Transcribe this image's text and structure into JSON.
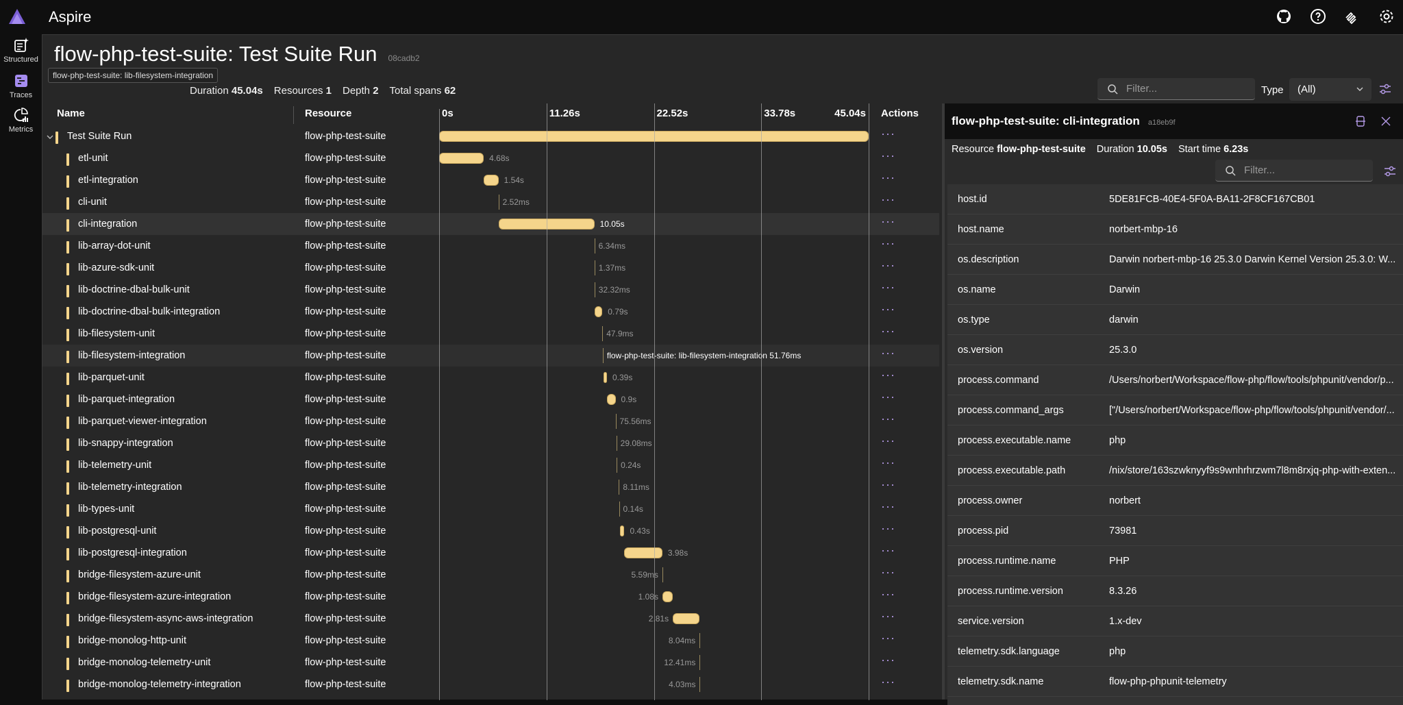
{
  "app": {
    "title": "Aspire",
    "top_icons": [
      "github-icon",
      "help-icon",
      "dashboard-settings-icon",
      "gear-icon"
    ]
  },
  "nav": {
    "items": [
      {
        "label": "Structured",
        "icon": "structured-logs-icon"
      },
      {
        "label": "Traces",
        "icon": "traces-icon"
      },
      {
        "label": "Metrics",
        "icon": "metrics-icon"
      }
    ]
  },
  "tooltip": "flow-php-test-suite: lib-filesystem-integration",
  "page": {
    "title": "flow-php-test-suite: Test Suite Run",
    "trace_id": "08cadb2",
    "stats": [
      {
        "label": "Duration",
        "value": "45.04s"
      },
      {
        "label": "Resources",
        "value": "1"
      },
      {
        "label": "Depth",
        "value": "2"
      },
      {
        "label": "Total spans",
        "value": "62"
      }
    ],
    "filter_placeholder": "Filter...",
    "type_label": "Type",
    "type_value": "(All)"
  },
  "table": {
    "headers": {
      "name": "Name",
      "resource": "Resource",
      "actions": "Actions"
    },
    "ticks": [
      "0s",
      "11.26s",
      "22.52s",
      "33.78s",
      "45.04s"
    ],
    "total": 45.04,
    "rows": [
      {
        "name": "Test Suite Run",
        "resource": "flow-php-test-suite",
        "start": 0,
        "duration": 45.04,
        "label": "",
        "root": true
      },
      {
        "name": "etl-unit",
        "resource": "flow-php-test-suite",
        "start": 0,
        "duration": 4.68,
        "label": "4.68s"
      },
      {
        "name": "etl-integration",
        "resource": "flow-php-test-suite",
        "start": 4.68,
        "duration": 1.54,
        "label": "1.54s"
      },
      {
        "name": "cli-unit",
        "resource": "flow-php-test-suite",
        "start": 6.22,
        "duration": 0.00252,
        "label": "2.52ms"
      },
      {
        "name": "cli-integration",
        "resource": "flow-php-test-suite",
        "start": 6.23,
        "duration": 10.05,
        "label": "10.05s",
        "selected": true
      },
      {
        "name": "lib-array-dot-unit",
        "resource": "flow-php-test-suite",
        "start": 16.28,
        "duration": 0.00634,
        "label": "6.34ms"
      },
      {
        "name": "lib-azure-sdk-unit",
        "resource": "flow-php-test-suite",
        "start": 16.29,
        "duration": 0.00137,
        "label": "1.37ms"
      },
      {
        "name": "lib-doctrine-dbal-bulk-unit",
        "resource": "flow-php-test-suite",
        "start": 16.29,
        "duration": 0.03232,
        "label": "32.32ms"
      },
      {
        "name": "lib-doctrine-dbal-bulk-integration",
        "resource": "flow-php-test-suite",
        "start": 16.32,
        "duration": 0.79,
        "label": "0.79s"
      },
      {
        "name": "lib-filesystem-unit",
        "resource": "flow-php-test-suite",
        "start": 17.11,
        "duration": 0.0479,
        "label": "47.9ms"
      },
      {
        "name": "lib-filesystem-integration",
        "resource": "flow-php-test-suite",
        "start": 17.16,
        "duration": 0.05176,
        "label": "flow-php-test-suite: lib-filesystem-integration 51.76ms",
        "hover": true
      },
      {
        "name": "lib-parquet-unit",
        "resource": "flow-php-test-suite",
        "start": 17.21,
        "duration": 0.39,
        "label": "0.39s"
      },
      {
        "name": "lib-parquet-integration",
        "resource": "flow-php-test-suite",
        "start": 17.6,
        "duration": 0.9,
        "label": "0.9s"
      },
      {
        "name": "lib-parquet-viewer-integration",
        "resource": "flow-php-test-suite",
        "start": 18.5,
        "duration": 0.07556,
        "label": "75.56ms"
      },
      {
        "name": "lib-snappy-integration",
        "resource": "flow-php-test-suite",
        "start": 18.58,
        "duration": 0.02908,
        "label": "29.08ms"
      },
      {
        "name": "lib-telemetry-unit",
        "resource": "flow-php-test-suite",
        "start": 18.61,
        "duration": 0.24,
        "label": "0.24s"
      },
      {
        "name": "lib-telemetry-integration",
        "resource": "flow-php-test-suite",
        "start": 18.85,
        "duration": 0.00811,
        "label": "8.11ms"
      },
      {
        "name": "lib-types-unit",
        "resource": "flow-php-test-suite",
        "start": 18.86,
        "duration": 0.14,
        "label": "0.14s"
      },
      {
        "name": "lib-postgresql-unit",
        "resource": "flow-php-test-suite",
        "start": 19.0,
        "duration": 0.43,
        "label": "0.43s"
      },
      {
        "name": "lib-postgresql-integration",
        "resource": "flow-php-test-suite",
        "start": 19.43,
        "duration": 3.98,
        "label": "3.98s"
      },
      {
        "name": "bridge-filesystem-azure-unit",
        "resource": "flow-php-test-suite",
        "start": 23.41,
        "duration": 0.00559,
        "label": "5.59ms"
      },
      {
        "name": "bridge-filesystem-azure-integration",
        "resource": "flow-php-test-suite",
        "start": 23.42,
        "duration": 1.08,
        "label": "1.08s"
      },
      {
        "name": "bridge-filesystem-async-aws-integration",
        "resource": "flow-php-test-suite",
        "start": 24.5,
        "duration": 2.81,
        "label": "2.81s"
      },
      {
        "name": "bridge-monolog-http-unit",
        "resource": "flow-php-test-suite",
        "start": 27.31,
        "duration": 0.00804,
        "label": "8.04ms"
      },
      {
        "name": "bridge-monolog-telemetry-unit",
        "resource": "flow-php-test-suite",
        "start": 27.32,
        "duration": 0.01241,
        "label": "12.41ms"
      },
      {
        "name": "bridge-monolog-telemetry-integration",
        "resource": "flow-php-test-suite",
        "start": 27.33,
        "duration": 0.00403,
        "label": "4.03ms"
      }
    ]
  },
  "detail": {
    "title": "flow-php-test-suite: cli-integration",
    "span_id": "a18eb9f",
    "meta": [
      {
        "label": "Resource",
        "value": "flow-php-test-suite"
      },
      {
        "label": "Duration",
        "value": "10.05s"
      },
      {
        "label": "Start time",
        "value": "6.23s"
      }
    ],
    "filter_placeholder": "Filter...",
    "attributes": [
      {
        "key": "host.id",
        "value": "5DE81FCB-40E4-5F0A-BA11-2F8CF167CB01"
      },
      {
        "key": "host.name",
        "value": "norbert-mbp-16"
      },
      {
        "key": "os.description",
        "value": "Darwin norbert-mbp-16 25.3.0 Darwin Kernel Version 25.3.0: W..."
      },
      {
        "key": "os.name",
        "value": "Darwin"
      },
      {
        "key": "os.type",
        "value": "darwin"
      },
      {
        "key": "os.version",
        "value": "25.3.0"
      },
      {
        "key": "process.command",
        "value": "/Users/norbert/Workspace/flow-php/flow/tools/phpunit/vendor/p..."
      },
      {
        "key": "process.command_args",
        "value": "[\"/Users/norbert/Workspace/flow-php/flow/tools/phpunit/vendor/..."
      },
      {
        "key": "process.executable.name",
        "value": "php"
      },
      {
        "key": "process.executable.path",
        "value": "/nix/store/163szwknyyf9s9wnhrhrzwm7l8m8rxjq-php-with-exten..."
      },
      {
        "key": "process.owner",
        "value": "norbert"
      },
      {
        "key": "process.pid",
        "value": "73981"
      },
      {
        "key": "process.runtime.name",
        "value": "PHP"
      },
      {
        "key": "process.runtime.version",
        "value": "8.3.26"
      },
      {
        "key": "service.version",
        "value": "1.x-dev"
      },
      {
        "key": "telemetry.sdk.language",
        "value": "php"
      },
      {
        "key": "telemetry.sdk.name",
        "value": "flow-php-phpunit-telemetry"
      }
    ]
  },
  "colors": {
    "span": "#f5d58b",
    "accent": "#b59be8",
    "background": "#272727"
  }
}
